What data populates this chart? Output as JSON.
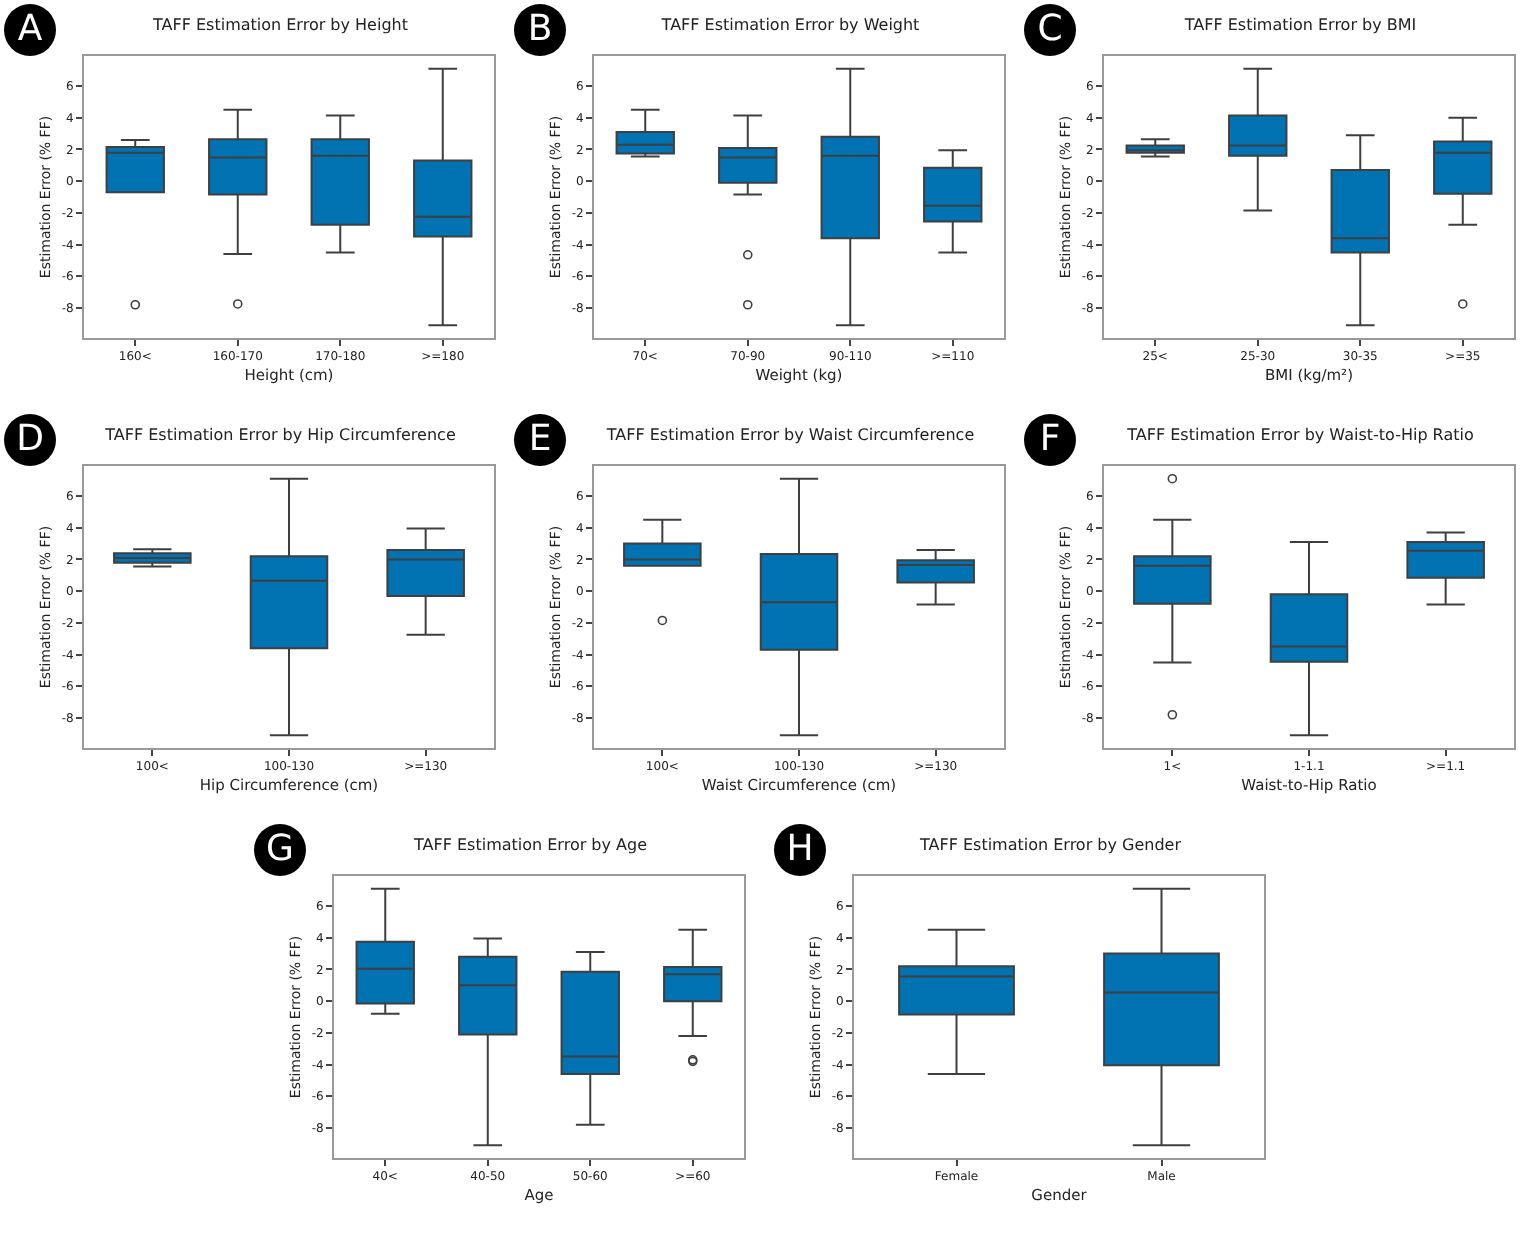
{
  "chart_data": [
    {
      "type": "box",
      "annotations": [
        "A"
      ],
      "title": "TAFF Estimation Error by Height",
      "xlabel": "Height (cm)",
      "ylabel": "Estimation Error (% FF)",
      "color": "#0173b2",
      "ylim": [
        -9.9,
        7.9
      ],
      "yticks": [
        -8,
        -6,
        -4,
        -2,
        0,
        2,
        4,
        6
      ],
      "grid": false,
      "categories": [
        "160<",
        "160-170",
        "170-180",
        ">=180"
      ],
      "boxes": [
        {
          "low": -0.7,
          "q1": -0.7,
          "median": 1.8,
          "q3": 2.15,
          "high": 2.6,
          "outliers": [
            -7.8
          ]
        },
        {
          "low": -4.6,
          "q1": -0.85,
          "median": 1.5,
          "q3": 2.65,
          "high": 4.5,
          "outliers": [
            -7.75
          ]
        },
        {
          "low": -4.5,
          "q1": -2.75,
          "median": 1.6,
          "q3": 2.65,
          "high": 4.15
        },
        {
          "low": -9.1,
          "q1": -3.5,
          "median": -2.25,
          "q3": 1.3,
          "high": 7.1
        }
      ]
    },
    {
      "type": "box",
      "annotations": [
        "B"
      ],
      "title": "TAFF Estimation Error by Weight",
      "xlabel": "Weight (kg)",
      "ylabel": "Estimation Error (% FF)",
      "color": "#0173b2",
      "ylim": [
        -9.9,
        7.9
      ],
      "yticks": [
        -8,
        -6,
        -4,
        -2,
        0,
        2,
        4,
        6
      ],
      "grid": false,
      "categories": [
        "70<",
        "70-90",
        "90-110",
        ">=110"
      ],
      "boxes": [
        {
          "low": 1.55,
          "q1": 1.75,
          "median": 2.3,
          "q3": 3.1,
          "high": 4.5
        },
        {
          "low": -0.85,
          "q1": -0.1,
          "median": 1.5,
          "q3": 2.1,
          "high": 4.15,
          "outliers": [
            -4.65,
            -7.8
          ]
        },
        {
          "low": -9.1,
          "q1": -3.6,
          "median": 1.6,
          "q3": 2.8,
          "high": 7.1
        },
        {
          "low": -4.5,
          "q1": -2.55,
          "median": -1.55,
          "q3": 0.85,
          "high": 1.95
        }
      ]
    },
    {
      "type": "box",
      "annotations": [
        "C"
      ],
      "title": "TAFF Estimation Error by BMI",
      "xlabel": "BMI (kg/m²)",
      "ylabel": "Estimation Error (% FF)",
      "color": "#0173b2",
      "ylim": [
        -9.9,
        7.9
      ],
      "yticks": [
        -8,
        -6,
        -4,
        -2,
        0,
        2,
        4,
        6
      ],
      "grid": false,
      "categories": [
        "25<",
        "25-30",
        "30-35",
        ">=35"
      ],
      "boxes": [
        {
          "low": 1.55,
          "q1": 1.8,
          "median": 1.95,
          "q3": 2.25,
          "high": 2.65
        },
        {
          "low": -1.85,
          "q1": 1.6,
          "median": 2.25,
          "q3": 4.15,
          "high": 7.1
        },
        {
          "low": -9.1,
          "q1": -4.5,
          "median": -3.6,
          "q3": 0.7,
          "high": 2.9
        },
        {
          "low": -2.75,
          "q1": -0.8,
          "median": 1.8,
          "q3": 2.5,
          "high": 4.0,
          "outliers": [
            -7.75
          ]
        }
      ]
    },
    {
      "type": "box",
      "annotations": [
        "D"
      ],
      "title": "TAFF Estimation Error by Hip Circumference",
      "xlabel": "Hip Circumference (cm)",
      "ylabel": "Estimation Error (% FF)",
      "color": "#0173b2",
      "ylim": [
        -9.9,
        7.9
      ],
      "yticks": [
        -8,
        -6,
        -4,
        -2,
        0,
        2,
        4,
        6
      ],
      "grid": false,
      "categories": [
        "100<",
        "100-130",
        ">=130"
      ],
      "boxes": [
        {
          "low": 1.55,
          "q1": 1.8,
          "median": 2.1,
          "q3": 2.4,
          "high": 2.65
        },
        {
          "low": -9.1,
          "q1": -3.6,
          "median": 0.65,
          "q3": 2.2,
          "high": 7.1
        },
        {
          "low": -2.75,
          "q1": -0.3,
          "median": 2.0,
          "q3": 2.6,
          "high": 3.95
        }
      ]
    },
    {
      "type": "box",
      "annotations": [
        "E"
      ],
      "title": "TAFF Estimation Error by Waist Circumference",
      "xlabel": "Waist Circumference (cm)",
      "ylabel": "Estimation Error (% FF)",
      "color": "#0173b2",
      "ylim": [
        -9.9,
        7.9
      ],
      "yticks": [
        -8,
        -6,
        -4,
        -2,
        0,
        2,
        4,
        6
      ],
      "grid": false,
      "categories": [
        "100<",
        "100-130",
        ">=130"
      ],
      "boxes": [
        {
          "low": 1.6,
          "q1": 1.6,
          "median": 2.0,
          "q3": 3.0,
          "high": 4.5,
          "outliers": [
            -1.85
          ]
        },
        {
          "low": -9.1,
          "q1": -3.7,
          "median": -0.7,
          "q3": 2.35,
          "high": 7.1
        },
        {
          "low": -0.85,
          "q1": 0.55,
          "median": 1.65,
          "q3": 1.95,
          "high": 2.6
        }
      ]
    },
    {
      "type": "box",
      "annotations": [
        "F"
      ],
      "title": "TAFF Estimation Error by Waist-to-Hip Ratio",
      "xlabel": "Waist-to-Hip Ratio",
      "ylabel": "Estimation Error (% FF)",
      "color": "#0173b2",
      "ylim": [
        -9.9,
        7.9
      ],
      "yticks": [
        -8,
        -6,
        -4,
        -2,
        0,
        2,
        4,
        6
      ],
      "grid": false,
      "categories": [
        "1<",
        "1-1.1",
        ">=1.1"
      ],
      "boxes": [
        {
          "low": -4.5,
          "q1": -0.8,
          "median": 1.6,
          "q3": 2.2,
          "high": 4.5,
          "outliers": [
            7.1,
            -7.8
          ]
        },
        {
          "low": -9.1,
          "q1": -4.45,
          "median": -3.5,
          "q3": -0.2,
          "high": 3.1
        },
        {
          "low": -0.85,
          "q1": 0.85,
          "median": 2.55,
          "q3": 3.1,
          "high": 3.7
        }
      ]
    },
    {
      "type": "box",
      "annotations": [
        "G"
      ],
      "title": "TAFF Estimation Error by Age",
      "xlabel": "Age",
      "ylabel": "Estimation Error (% FF)",
      "color": "#0173b2",
      "ylim": [
        -9.9,
        7.9
      ],
      "yticks": [
        -8,
        -6,
        -4,
        -2,
        0,
        2,
        4,
        6
      ],
      "grid": false,
      "categories": [
        "40<",
        "40-50",
        "50-60",
        ">=60"
      ],
      "boxes": [
        {
          "low": -0.8,
          "q1": -0.15,
          "median": 2.05,
          "q3": 3.75,
          "high": 7.1
        },
        {
          "low": -9.1,
          "q1": -2.1,
          "median": 1.0,
          "q3": 2.8,
          "high": 3.95
        },
        {
          "low": -7.8,
          "q1": -4.6,
          "median": -3.5,
          "q3": 1.85,
          "high": 3.1
        },
        {
          "low": -2.2,
          "q1": 0.0,
          "median": 1.7,
          "q3": 2.15,
          "high": 4.5,
          "outliers": [
            -3.7,
            -3.8
          ]
        }
      ]
    },
    {
      "type": "box",
      "annotations": [
        "H"
      ],
      "title": "TAFF Estimation Error by Gender",
      "xlabel": "Gender",
      "ylabel": "Estimation Error (% FF)",
      "color": "#0173b2",
      "ylim": [
        -9.9,
        7.9
      ],
      "yticks": [
        -8,
        -6,
        -4,
        -2,
        0,
        2,
        4,
        6
      ],
      "grid": false,
      "categories": [
        "Female",
        "Male"
      ],
      "boxes": [
        {
          "low": -4.6,
          "q1": -0.85,
          "median": 1.55,
          "q3": 2.2,
          "high": 4.5
        },
        {
          "low": -9.1,
          "q1": -4.05,
          "median": 0.55,
          "q3": 3.0,
          "high": 7.1
        }
      ]
    }
  ]
}
